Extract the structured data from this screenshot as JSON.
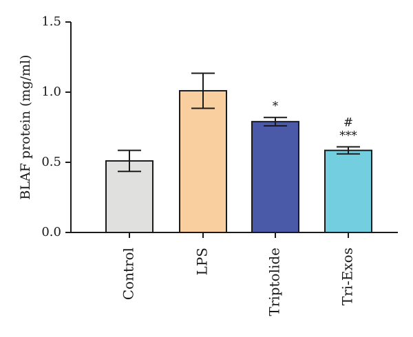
{
  "chart_data": {
    "type": "bar",
    "ylabel": "BLAF protein (mg/ml)",
    "xlabel": "",
    "ylim": [
      0,
      1.5
    ],
    "yticks": [
      "0.0",
      "0.5",
      "1.0",
      "1.5"
    ],
    "ytick_values": [
      0,
      0.5,
      1.0,
      1.5
    ],
    "categories": [
      "Control",
      "LPS",
      "Triptolide",
      "Tri-Exos"
    ],
    "values": [
      0.51,
      1.01,
      0.79,
      0.585
    ],
    "errors": [
      0.075,
      0.125,
      0.03,
      0.025
    ],
    "colors": [
      "#e0e0de",
      "#f9cf9f",
      "#4a5aa8",
      "#73cfe0"
    ],
    "annotations": [
      "",
      "",
      "*",
      "***"
    ],
    "annotations_top": [
      "",
      "",
      "",
      "#"
    ],
    "grid": false,
    "legend": "none"
  }
}
